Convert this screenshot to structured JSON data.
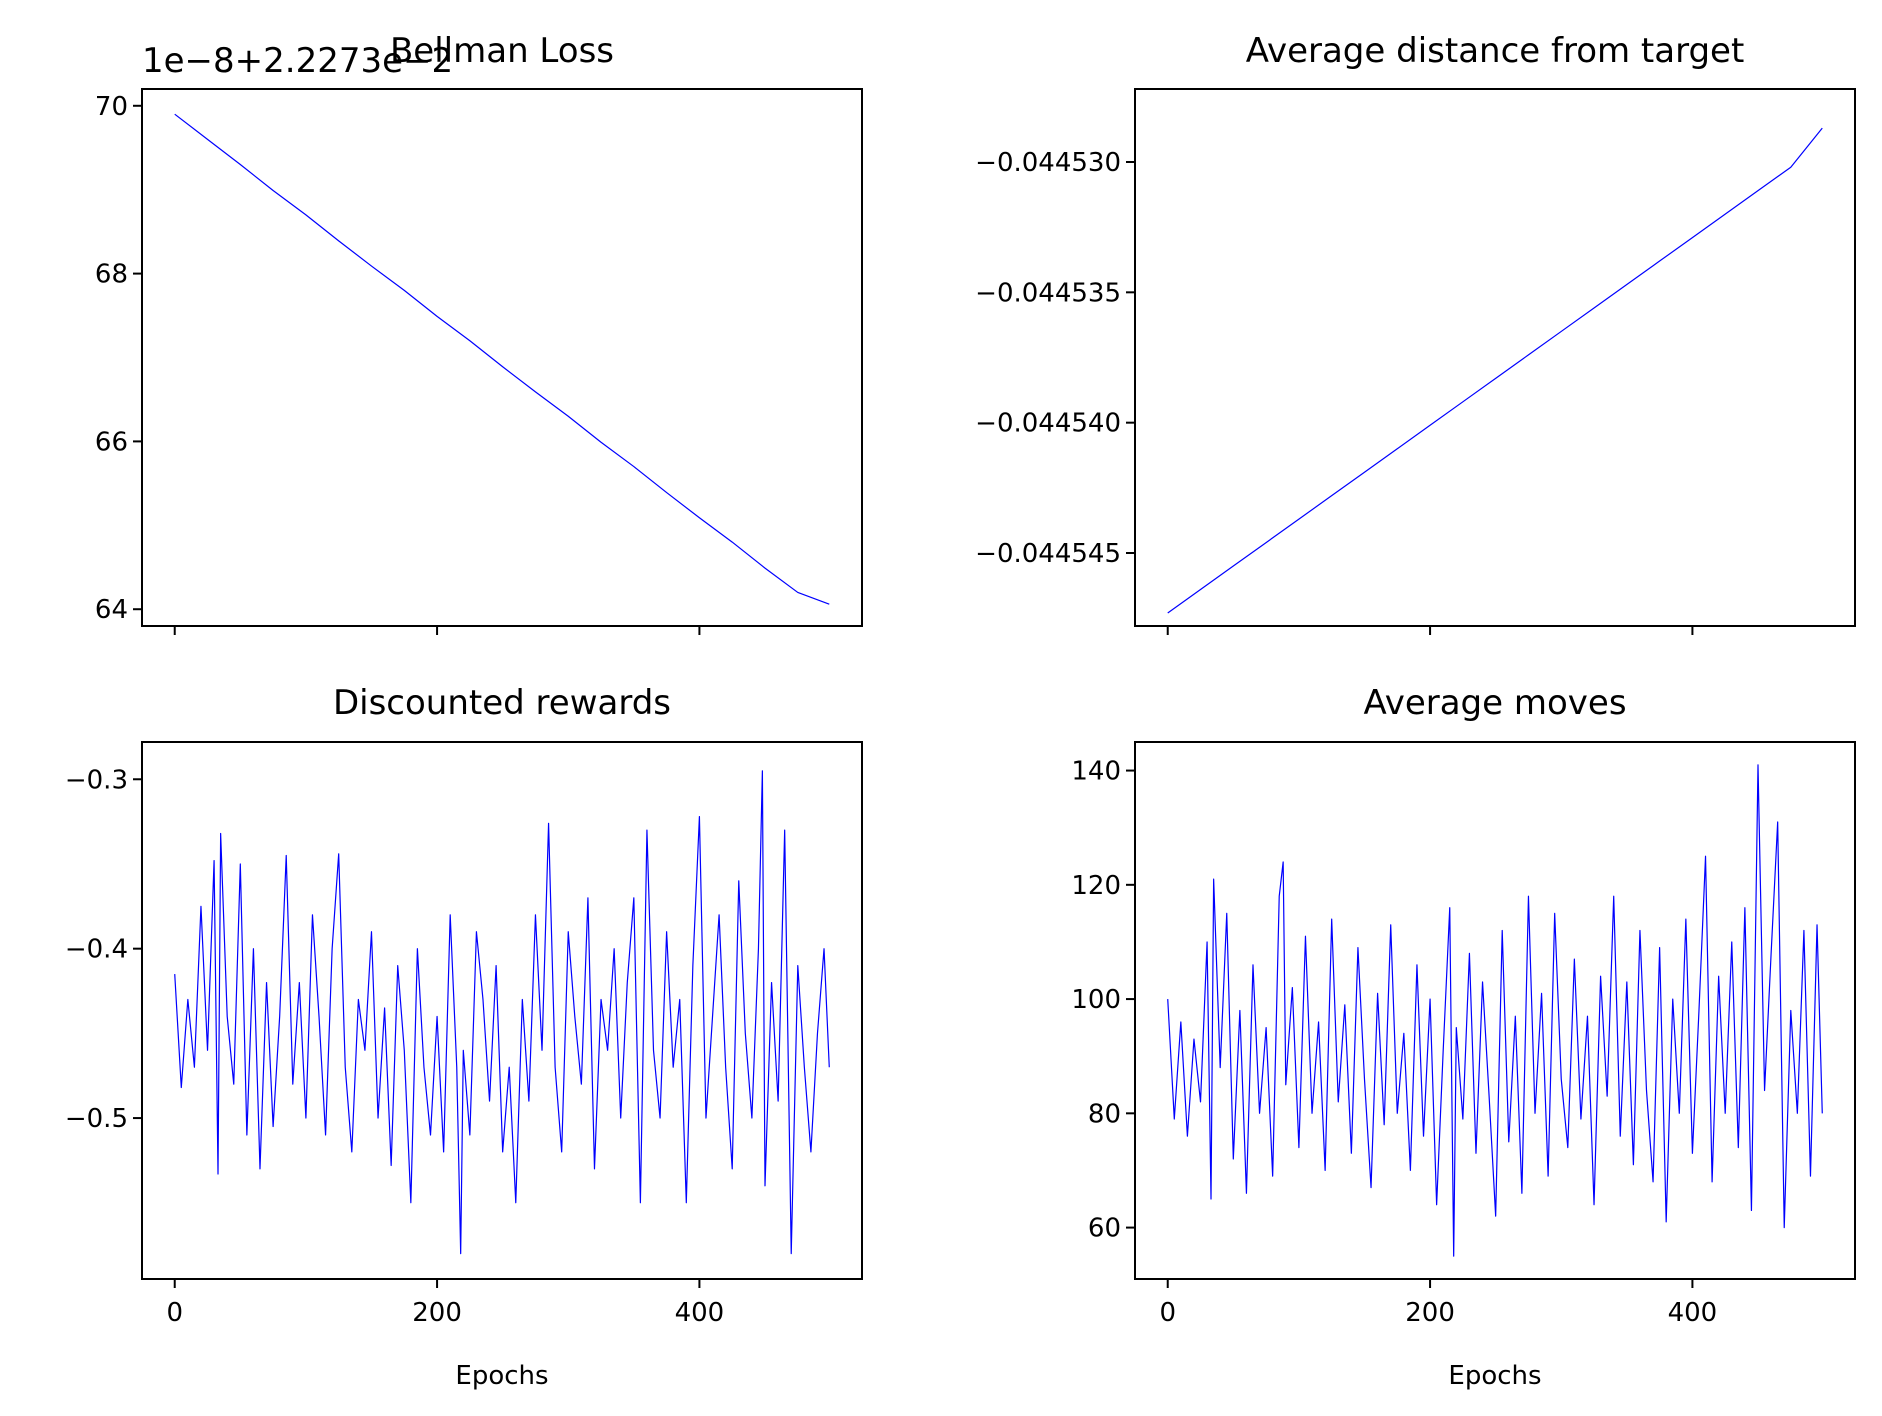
{
  "figure": {
    "background": "#ffffff",
    "line_color": "#0000ff"
  },
  "chart_data": [
    {
      "type": "line",
      "title": "Bellman Loss",
      "offset_text": "1e−8+2.2273e−2",
      "xlabel": "",
      "ylabel": "",
      "xlim": [
        -24.95,
        523.95
      ],
      "ylim": [
        63.8,
        70.2
      ],
      "xticks": [
        0,
        200,
        400
      ],
      "xticklabels": [
        "",
        "",
        ""
      ],
      "yticks": [
        64,
        66,
        68,
        70
      ],
      "yticklabels": [
        "64",
        "66",
        "68",
        "70"
      ],
      "grid": false,
      "x": [
        0,
        25,
        50,
        75,
        100,
        125,
        150,
        175,
        200,
        225,
        250,
        275,
        300,
        325,
        350,
        375,
        400,
        425,
        450,
        475,
        499
      ],
      "series": [
        {
          "values": [
            69.9,
            69.6,
            69.3,
            68.99,
            68.7,
            68.39,
            68.09,
            67.8,
            67.49,
            67.2,
            66.89,
            66.59,
            66.3,
            65.99,
            65.7,
            65.39,
            65.09,
            64.8,
            64.49,
            64.2,
            64.06
          ]
        }
      ]
    },
    {
      "type": "line",
      "title": "Average distance from target",
      "xlabel": "",
      "ylabel": "",
      "xlim": [
        -24.95,
        523.95
      ],
      "ylim": [
        -0.0445478,
        -0.0445272
      ],
      "xticks": [
        0,
        200,
        400
      ],
      "xticklabels": [
        "",
        "",
        ""
      ],
      "yticks": [
        -0.044545,
        -0.04454,
        -0.044535,
        -0.04453
      ],
      "yticklabels": [
        "−0.044545",
        "−0.044540",
        "−0.044535",
        "−0.044530"
      ],
      "grid": false,
      "x": [
        0,
        25,
        50,
        75,
        100,
        125,
        150,
        175,
        200,
        225,
        250,
        275,
        300,
        325,
        350,
        375,
        400,
        425,
        450,
        475,
        499
      ],
      "series": [
        {
          "values": [
            -0.0445473,
            -0.0445464,
            -0.0445455,
            -0.0445446,
            -0.0445437,
            -0.0445428,
            -0.0445419,
            -0.044541,
            -0.0445401,
            -0.0445392,
            -0.0445383,
            -0.0445374,
            -0.0445365,
            -0.0445356,
            -0.0445347,
            -0.0445338,
            -0.0445329,
            -0.044532,
            -0.0445311,
            -0.0445302,
            -0.0445287
          ]
        }
      ]
    },
    {
      "type": "line",
      "title": "Discounted rewards",
      "xlabel": "Epochs",
      "ylabel": "",
      "xlim": [
        -24.95,
        523.95
      ],
      "ylim": [
        -0.595,
        -0.278
      ],
      "xticks": [
        0,
        200,
        400
      ],
      "xticklabels": [
        "0",
        "200",
        "400"
      ],
      "yticks": [
        -0.5,
        -0.4,
        -0.3
      ],
      "yticklabels": [
        "−0.5",
        "−0.4",
        "−0.3"
      ],
      "grid": false,
      "x": [
        0,
        5,
        10,
        15,
        20,
        25,
        30,
        33,
        35,
        40,
        45,
        50,
        55,
        60,
        65,
        70,
        75,
        80,
        85,
        90,
        95,
        100,
        105,
        110,
        115,
        120,
        125,
        130,
        135,
        140,
        145,
        150,
        155,
        160,
        165,
        170,
        175,
        180,
        185,
        190,
        195,
        200,
        205,
        210,
        215,
        218,
        220,
        225,
        230,
        235,
        240,
        245,
        250,
        255,
        260,
        265,
        270,
        275,
        280,
        285,
        290,
        295,
        300,
        305,
        310,
        315,
        320,
        325,
        330,
        335,
        340,
        345,
        350,
        355,
        360,
        365,
        370,
        375,
        380,
        385,
        390,
        395,
        400,
        405,
        410,
        415,
        420,
        425,
        430,
        435,
        440,
        445,
        448,
        450,
        455,
        460,
        465,
        470,
        475,
        480,
        485,
        490,
        495,
        499
      ],
      "series": [
        {
          "values": [
            -0.415,
            -0.482,
            -0.43,
            -0.47,
            -0.375,
            -0.46,
            -0.348,
            -0.533,
            -0.332,
            -0.44,
            -0.48,
            -0.35,
            -0.51,
            -0.4,
            -0.53,
            -0.42,
            -0.505,
            -0.44,
            -0.345,
            -0.48,
            -0.42,
            -0.5,
            -0.38,
            -0.44,
            -0.51,
            -0.4,
            -0.344,
            -0.47,
            -0.52,
            -0.43,
            -0.46,
            -0.39,
            -0.5,
            -0.435,
            -0.528,
            -0.41,
            -0.46,
            -0.55,
            -0.4,
            -0.47,
            -0.51,
            -0.44,
            -0.52,
            -0.38,
            -0.47,
            -0.58,
            -0.46,
            -0.51,
            -0.39,
            -0.43,
            -0.49,
            -0.41,
            -0.52,
            -0.47,
            -0.55,
            -0.43,
            -0.49,
            -0.38,
            -0.46,
            -0.326,
            -0.47,
            -0.52,
            -0.39,
            -0.44,
            -0.48,
            -0.37,
            -0.53,
            -0.43,
            -0.46,
            -0.4,
            -0.5,
            -0.42,
            -0.37,
            -0.55,
            -0.33,
            -0.46,
            -0.5,
            -0.39,
            -0.47,
            -0.43,
            -0.55,
            -0.41,
            -0.322,
            -0.5,
            -0.44,
            -0.38,
            -0.47,
            -0.53,
            -0.36,
            -0.45,
            -0.5,
            -0.4,
            -0.295,
            -0.54,
            -0.42,
            -0.49,
            -0.33,
            -0.58,
            -0.41,
            -0.47,
            -0.52,
            -0.45,
            -0.4,
            -0.47
          ]
        }
      ]
    },
    {
      "type": "line",
      "title": "Average moves",
      "xlabel": "Epochs",
      "ylabel": "",
      "xlim": [
        -24.95,
        523.95
      ],
      "ylim": [
        51,
        145
      ],
      "xticks": [
        0,
        200,
        400
      ],
      "xticklabels": [
        "0",
        "200",
        "400"
      ],
      "yticks": [
        60,
        80,
        100,
        120,
        140
      ],
      "yticklabels": [
        "60",
        "80",
        "100",
        "120",
        "140"
      ],
      "grid": false,
      "x": [
        0,
        5,
        10,
        15,
        20,
        25,
        30,
        33,
        35,
        40,
        45,
        50,
        55,
        60,
        65,
        70,
        75,
        80,
        85,
        88,
        90,
        95,
        100,
        105,
        110,
        115,
        120,
        125,
        130,
        135,
        140,
        145,
        150,
        155,
        160,
        165,
        170,
        175,
        180,
        185,
        190,
        195,
        200,
        205,
        210,
        215,
        218,
        220,
        225,
        230,
        235,
        240,
        245,
        250,
        255,
        260,
        265,
        270,
        275,
        280,
        285,
        290,
        295,
        300,
        305,
        310,
        315,
        320,
        325,
        330,
        335,
        340,
        345,
        350,
        355,
        360,
        365,
        370,
        375,
        380,
        385,
        390,
        395,
        400,
        405,
        410,
        415,
        420,
        425,
        430,
        435,
        440,
        445,
        450,
        455,
        460,
        465,
        470,
        475,
        480,
        485,
        490,
        495,
        499
      ],
      "series": [
        {
          "values": [
            100,
            79,
            96,
            76,
            93,
            82,
            110,
            65,
            121,
            88,
            115,
            72,
            98,
            66,
            106,
            80,
            95,
            69,
            118,
            124,
            85,
            102,
            74,
            111,
            80,
            96,
            70,
            114,
            82,
            99,
            73,
            109,
            86,
            67,
            101,
            78,
            113,
            80,
            94,
            70,
            106,
            76,
            100,
            64,
            91,
            116,
            55,
            95,
            79,
            108,
            73,
            103,
            83,
            62,
            112,
            75,
            97,
            66,
            118,
            80,
            101,
            69,
            115,
            86,
            74,
            107,
            79,
            97,
            64,
            104,
            83,
            118,
            76,
            103,
            71,
            112,
            84,
            68,
            109,
            61,
            100,
            80,
            114,
            73,
            98,
            125,
            68,
            104,
            80,
            110,
            74,
            116,
            63,
            141,
            84,
            108,
            131,
            60,
            98,
            80,
            112,
            69,
            113,
            80
          ]
        }
      ]
    }
  ]
}
